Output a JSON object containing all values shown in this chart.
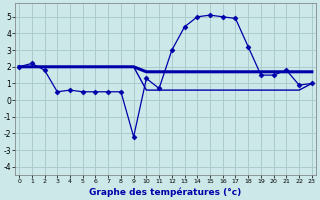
{
  "xlabel": "Graphe des températures (°c)",
  "bg_color": "#cce8e8",
  "grid_color": "#aacccc",
  "line_color": "#0000aa",
  "line1_x": [
    0,
    1,
    2,
    3,
    4,
    5,
    6,
    7,
    8,
    9,
    10,
    11,
    12,
    13,
    14,
    15,
    16,
    17,
    18,
    19,
    20,
    21,
    22,
    23
  ],
  "line1_y": [
    2.0,
    2.2,
    1.8,
    0.5,
    0.6,
    0.5,
    0.5,
    0.5,
    0.5,
    -2.2,
    1.3,
    0.7,
    3.0,
    4.4,
    5.0,
    5.1,
    5.0,
    4.9,
    3.2,
    1.5,
    1.5,
    1.8,
    0.9,
    1.0
  ],
  "line2_x": [
    0,
    1,
    2,
    3,
    4,
    5,
    6,
    7,
    8,
    9,
    10,
    11,
    12,
    13,
    14,
    15,
    16,
    17,
    18,
    19,
    20,
    21,
    22,
    23
  ],
  "line2_y": [
    2.0,
    2.0,
    2.0,
    2.0,
    2.0,
    2.0,
    2.0,
    2.0,
    2.0,
    2.0,
    1.7,
    1.7,
    1.7,
    1.7,
    1.7,
    1.7,
    1.7,
    1.7,
    1.7,
    1.7,
    1.7,
    1.7,
    1.7,
    1.7
  ],
  "line3_x": [
    0,
    1,
    2,
    3,
    4,
    5,
    6,
    7,
    8,
    9,
    10,
    11,
    12,
    13,
    14,
    15,
    16,
    17,
    18,
    19,
    20,
    21,
    22,
    23
  ],
  "line3_y": [
    2.0,
    2.0,
    2.0,
    2.0,
    2.0,
    2.0,
    2.0,
    2.0,
    2.0,
    2.0,
    0.6,
    0.6,
    0.6,
    0.6,
    0.6,
    0.6,
    0.6,
    0.6,
    0.6,
    0.6,
    0.6,
    0.6,
    0.6,
    1.0
  ],
  "ylim": [
    -4.5,
    5.8
  ],
  "xlim": [
    -0.3,
    23.3
  ],
  "yticks": [
    -4,
    -3,
    -2,
    -1,
    0,
    1,
    2,
    3,
    4,
    5
  ],
  "xticks": [
    0,
    1,
    2,
    3,
    4,
    5,
    6,
    7,
    8,
    9,
    10,
    11,
    12,
    13,
    14,
    15,
    16,
    17,
    18,
    19,
    20,
    21,
    22,
    23
  ]
}
